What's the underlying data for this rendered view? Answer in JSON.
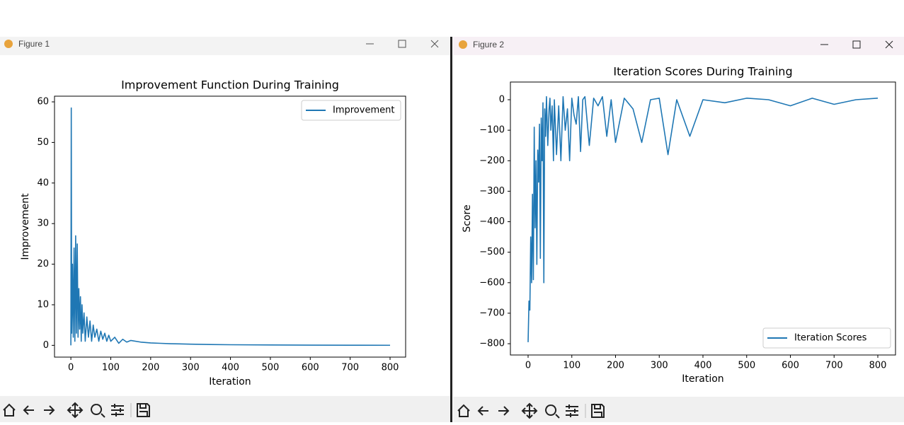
{
  "windows": [
    "Figure 1",
    "Figure 2"
  ],
  "chart_data": [
    {
      "type": "line",
      "title": "Improvement Function During Training",
      "x_label": "Iteration",
      "y_label": "Improvement",
      "x": [
        0,
        1,
        2,
        4,
        6,
        8,
        10,
        12,
        14,
        16,
        18,
        20,
        22,
        24,
        26,
        28,
        30,
        33,
        36,
        40,
        44,
        48,
        52,
        56,
        60,
        65,
        70,
        75,
        80,
        85,
        90,
        95,
        100,
        110,
        120,
        130,
        140,
        150,
        175,
        200,
        225,
        250,
        300,
        350,
        400,
        500,
        600,
        700,
        800
      ],
      "series": [
        {
          "name": "Improvement",
          "color": "#1f77b4",
          "values": [
            0,
            58.5,
            3,
            20,
            2,
            24,
            1,
            27,
            3,
            25,
            2,
            14,
            4,
            12,
            1,
            10,
            3,
            8,
            1,
            7,
            2,
            6,
            1,
            5,
            2,
            4,
            1,
            3.5,
            1.5,
            3,
            1,
            2.5,
            1,
            2,
            0.5,
            1.5,
            0.8,
            1.2,
            0.8,
            0.6,
            0.5,
            0.4,
            0.3,
            0.2,
            0.15,
            0.1,
            0.05,
            0.03,
            0.02
          ]
        }
      ],
      "xlim": [
        -41,
        839
      ],
      "ylim": [
        -2.9,
        61.4
      ],
      "xticks": [
        0,
        100,
        200,
        300,
        400,
        500,
        600,
        700,
        800
      ],
      "yticks": [
        0,
        10,
        20,
        30,
        40,
        50,
        60
      ],
      "legend": "upper right"
    },
    {
      "type": "line",
      "title": "Iteration Scores During Training",
      "x_label": "Iteration",
      "y_label": "Score",
      "x": [
        0,
        2,
        4,
        6,
        8,
        10,
        12,
        14,
        16,
        18,
        20,
        22,
        24,
        26,
        28,
        30,
        32,
        34,
        36,
        38,
        40,
        42,
        45,
        48,
        50,
        52,
        55,
        58,
        60,
        65,
        70,
        75,
        80,
        85,
        90,
        95,
        100,
        105,
        110,
        115,
        120,
        125,
        130,
        140,
        150,
        160,
        170,
        180,
        190,
        200,
        220,
        240,
        260,
        280,
        300,
        320,
        340,
        370,
        400,
        450,
        500,
        550,
        600,
        650,
        700,
        750,
        800
      ],
      "series": [
        {
          "name": "Iteration Scores",
          "color": "#1f77b4",
          "values": [
            -795,
            -660,
            -690,
            -450,
            -600,
            -310,
            -590,
            -90,
            -420,
            -200,
            -540,
            -165,
            -270,
            -80,
            -520,
            -60,
            -200,
            -10,
            -600,
            -30,
            -120,
            10,
            -150,
            -30,
            5,
            -100,
            -20,
            -200,
            0,
            -180,
            -20,
            -200,
            10,
            -100,
            -30,
            -200,
            5,
            -50,
            -80,
            10,
            -170,
            0,
            10,
            -150,
            5,
            -20,
            10,
            -120,
            0,
            -140,
            5,
            -30,
            -140,
            0,
            5,
            -180,
            0,
            -120,
            0,
            -10,
            5,
            0,
            -20,
            5,
            -15,
            0,
            5
          ]
        }
      ],
      "xlim": [
        -40.5,
        840.5
      ],
      "ylim": [
        -837,
        58
      ],
      "xticks": [
        0,
        100,
        200,
        300,
        400,
        500,
        600,
        700,
        800
      ],
      "yticks": [
        {
          "value": -800,
          "label": "−800"
        },
        {
          "value": -700,
          "label": "−700"
        },
        {
          "value": -600,
          "label": "−600"
        },
        {
          "value": -500,
          "label": "−500"
        },
        {
          "value": -400,
          "label": "−400"
        },
        {
          "value": -300,
          "label": "−300"
        },
        {
          "value": -200,
          "label": "−200"
        },
        {
          "value": -100,
          "label": "−100"
        },
        0
      ],
      "legend": "lower right"
    }
  ]
}
